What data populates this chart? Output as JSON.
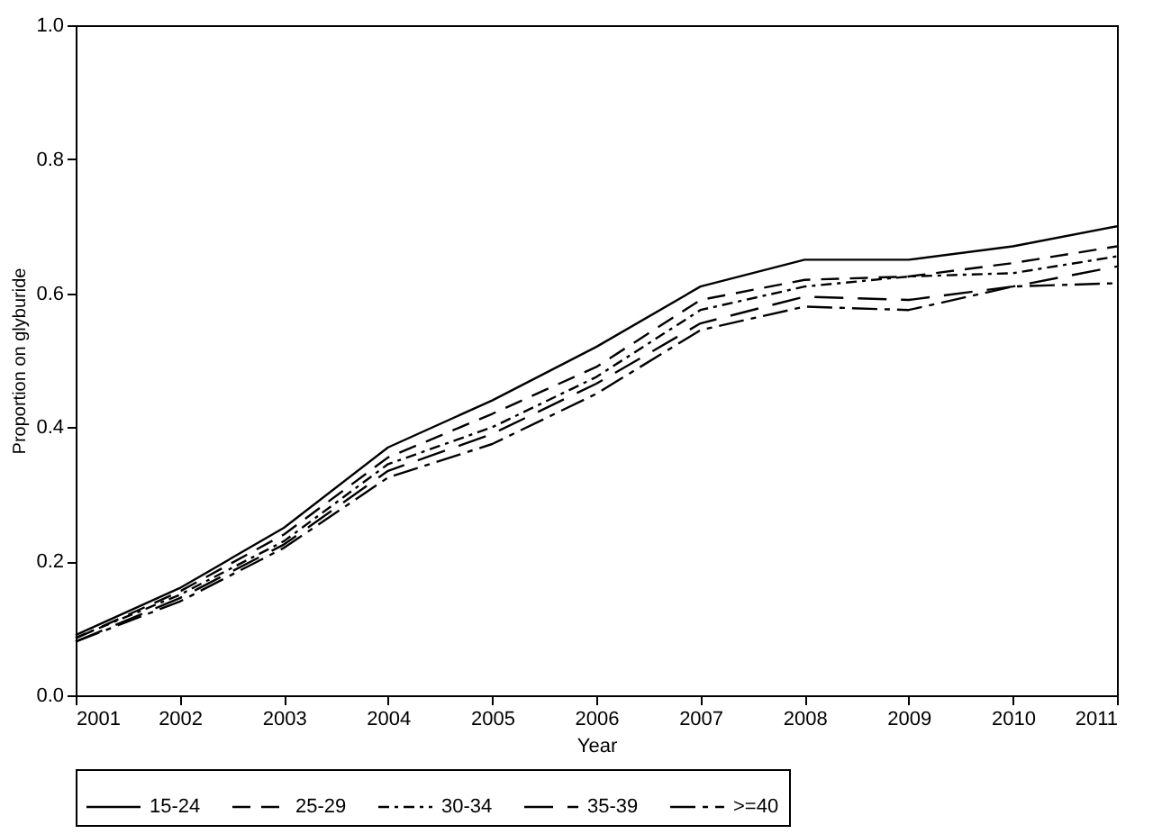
{
  "chart_data": {
    "type": "line",
    "xlabel": "Year",
    "ylabel": "Proportion on glyburide",
    "x": [
      2001,
      2002,
      2003,
      2004,
      2005,
      2006,
      2007,
      2008,
      2009,
      2010,
      2011
    ],
    "series": [
      {
        "name": "15-24",
        "color": "#000000",
        "line_style": "solid",
        "values": [
          0.09,
          0.16,
          0.25,
          0.37,
          0.44,
          0.52,
          0.61,
          0.65,
          0.65,
          0.67,
          0.7
        ]
      },
      {
        "name": "25-29",
        "color": "#000000",
        "line_style": "dashed",
        "values": [
          0.085,
          0.155,
          0.24,
          0.355,
          0.42,
          0.49,
          0.59,
          0.62,
          0.625,
          0.645,
          0.67
        ]
      },
      {
        "name": "30-34",
        "color": "#000000",
        "line_style": "dashdot",
        "values": [
          0.086,
          0.15,
          0.23,
          0.345,
          0.4,
          0.475,
          0.575,
          0.61,
          0.625,
          0.63,
          0.655
        ]
      },
      {
        "name": "35-39",
        "color": "#000000",
        "line_style": "longdash",
        "values": [
          0.08,
          0.145,
          0.225,
          0.335,
          0.39,
          0.465,
          0.555,
          0.595,
          0.59,
          0.61,
          0.64
        ]
      },
      {
        "name": ">=40",
        "color": "#000000",
        "line_style": "longdashdot",
        "values": [
          0.08,
          0.14,
          0.22,
          0.325,
          0.375,
          0.45,
          0.545,
          0.58,
          0.575,
          0.61,
          0.615
        ]
      }
    ],
    "xlim": [
      2001,
      2011
    ],
    "xticks": [
      2001,
      2002,
      2003,
      2004,
      2005,
      2006,
      2007,
      2008,
      2009,
      2010,
      2011
    ],
    "ylim": [
      0,
      1
    ],
    "yticks": [
      {
        "value": 0,
        "label": "0.0"
      },
      {
        "value": 0.2,
        "label": "0.2"
      },
      {
        "value": 0.4,
        "label": "0.4"
      },
      {
        "value": 0.6,
        "label": "0.6"
      },
      {
        "value": 0.8,
        "label": "0.8"
      },
      {
        "value": 1,
        "label": "1.0"
      }
    ],
    "grid": false,
    "legend": "bottom",
    "marker": "none"
  }
}
